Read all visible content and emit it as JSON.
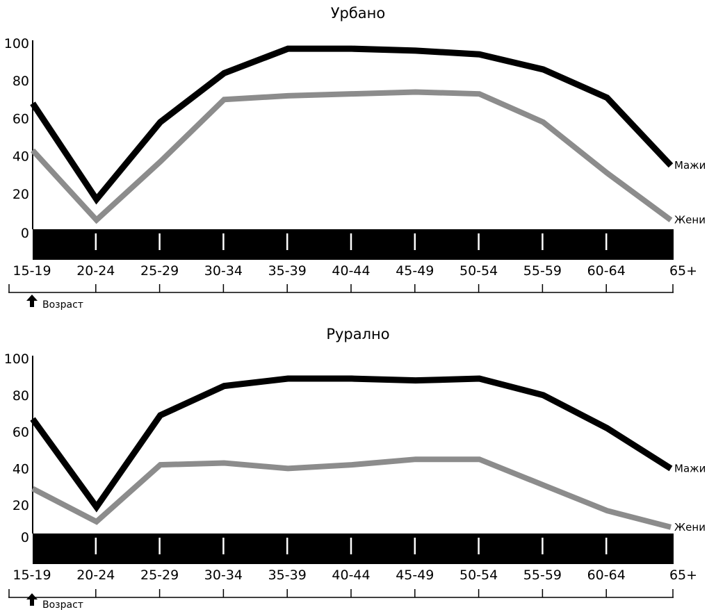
{
  "chart_data": [
    {
      "type": "line",
      "title": "Урбано",
      "categories": [
        "15-19",
        "20-24",
        "25-29",
        "30-34",
        "35-39",
        "40-44",
        "45-49",
        "50-54",
        "55-59",
        "60-64",
        "65+"
      ],
      "yticks": [
        "0",
        "20",
        "40",
        "60",
        "80",
        "100"
      ],
      "ylim": [
        0,
        100
      ],
      "axis_note": "Возраст",
      "series": [
        {
          "name": "Мажи",
          "color": "#000000",
          "values": [
            68,
            17,
            58,
            84,
            97,
            97,
            96,
            94,
            86,
            71,
            35
          ]
        },
        {
          "name": "Жени",
          "color": "#8c8c8c",
          "values": [
            43,
            6,
            37,
            70,
            72,
            73,
            74,
            73,
            58,
            31,
            6
          ]
        }
      ]
    },
    {
      "type": "line",
      "title": "Рурално",
      "categories": [
        "15-19",
        "20-24",
        "25-29",
        "30-34",
        "35-39",
        "40-44",
        "45-49",
        "50-54",
        "55-59",
        "60-64",
        "65+"
      ],
      "yticks": [
        "0",
        "20",
        "40",
        "60",
        "80",
        "100"
      ],
      "ylim": [
        0,
        100
      ],
      "axis_note": "Возраст",
      "series": [
        {
          "name": "Мажи",
          "color": "#000000",
          "values": [
            67,
            19,
            69,
            85,
            89,
            89,
            88,
            89,
            80,
            62,
            40
          ]
        },
        {
          "name": "Жени",
          "color": "#8c8c8c",
          "values": [
            29,
            11,
            42,
            43,
            40,
            42,
            45,
            45,
            31,
            17,
            8
          ]
        }
      ]
    }
  ]
}
